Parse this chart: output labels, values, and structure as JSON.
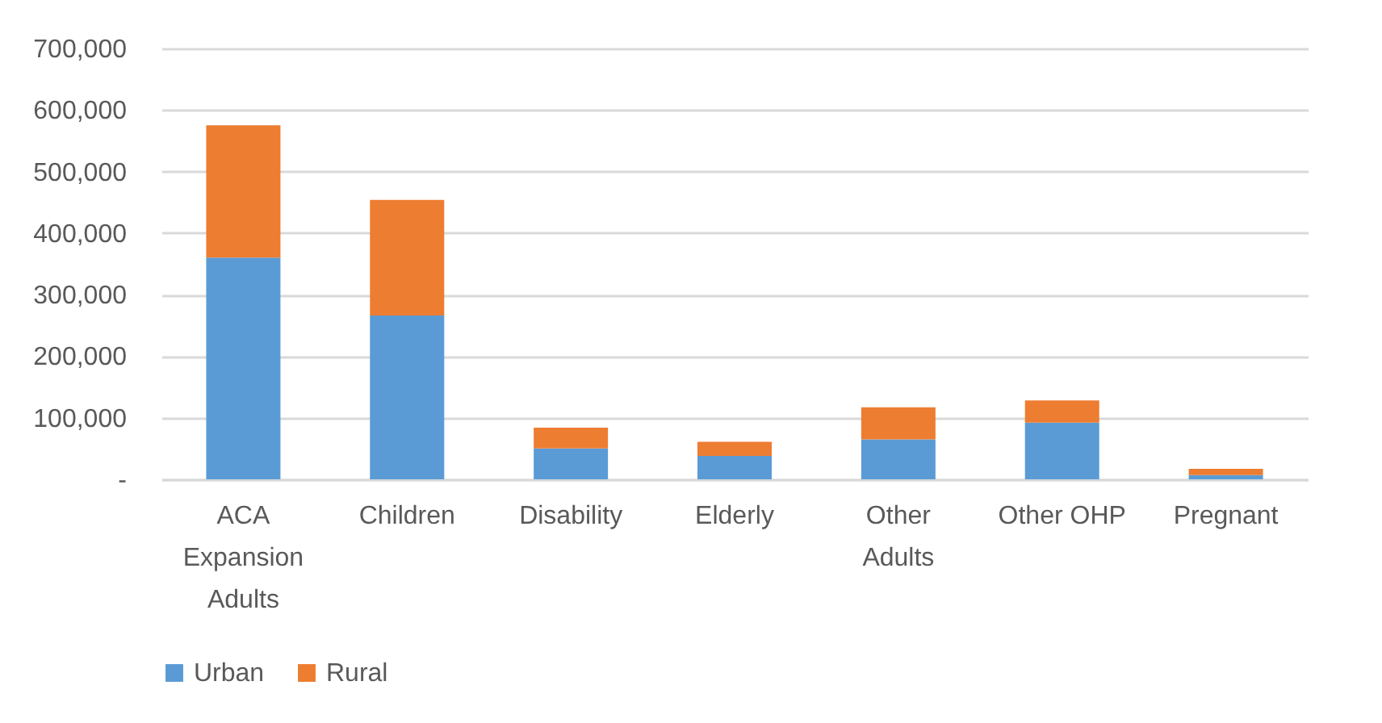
{
  "chart_data": {
    "type": "bar",
    "stacked": true,
    "categories": [
      "ACA Expansion Adults",
      "Children",
      "Disability",
      "Elderly",
      "Other Adults",
      "Other OHP",
      "Pregnant"
    ],
    "series": [
      {
        "name": "Urban",
        "color": "#5b9bd5",
        "values": [
          360000,
          266000,
          50000,
          38000,
          65000,
          92000,
          7000
        ]
      },
      {
        "name": "Rural",
        "color": "#ed7d31",
        "values": [
          215000,
          188000,
          34000,
          23000,
          52000,
          36000,
          10000
        ]
      }
    ],
    "ylim": [
      0,
      700000
    ],
    "yticks": [
      {
        "value": 0,
        "label": "-"
      },
      {
        "value": 100000,
        "label": "100,000"
      },
      {
        "value": 200000,
        "label": "200,000"
      },
      {
        "value": 300000,
        "label": "300,000"
      },
      {
        "value": 400000,
        "label": "400,000"
      },
      {
        "value": 500000,
        "label": "500,000"
      },
      {
        "value": 600000,
        "label": "600,000"
      },
      {
        "value": 700000,
        "label": "700,000"
      }
    ],
    "grid": "y",
    "legend": "bottom"
  }
}
